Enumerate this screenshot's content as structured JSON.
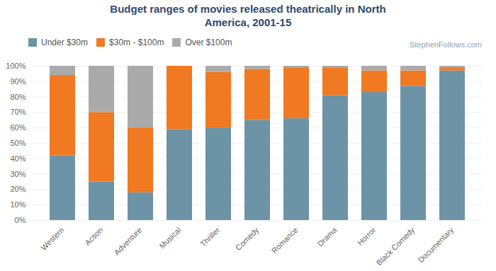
{
  "chart_data": {
    "type": "bar",
    "stacked": true,
    "title": "Budget ranges of movies released theatrically in North\nAmerica, 2001-15",
    "annotations": [
      "StephenFollows.com"
    ],
    "categories": [
      "Western",
      "Action",
      "Adventure",
      "Musical",
      "Thriller",
      "Comedy",
      "Romance",
      "Drama",
      "Horror",
      "Black Comedy",
      "Documentary"
    ],
    "series": [
      {
        "name": "Under $30m",
        "color": "#6d93a6",
        "values": [
          42,
          25,
          18,
          59,
          60,
          65,
          66,
          81,
          83,
          87,
          97
        ]
      },
      {
        "name": "$30m - $100m",
        "color": "#f07922",
        "values": [
          52,
          45,
          42,
          41,
          36,
          33,
          33,
          18,
          14,
          10,
          2
        ]
      },
      {
        "name": "Over $100m",
        "color": "#aaaaaa",
        "values": [
          6,
          30,
          40,
          0,
          4,
          2,
          1,
          1,
          3,
          3,
          1
        ]
      }
    ],
    "ylim": [
      0,
      100
    ],
    "yticks": [
      {
        "value": 0,
        "label": "0%"
      },
      {
        "value": 10,
        "label": "10%"
      },
      {
        "value": 20,
        "label": "20%"
      },
      {
        "value": 30,
        "label": "30%"
      },
      {
        "value": 40,
        "label": "40%"
      },
      {
        "value": 50,
        "label": "50%"
      },
      {
        "value": 60,
        "label": "60%"
      },
      {
        "value": 70,
        "label": "70%"
      },
      {
        "value": 80,
        "label": "80%"
      },
      {
        "value": 90,
        "label": "90%"
      },
      {
        "value": 100,
        "label": "100%"
      }
    ],
    "grid": true,
    "legend": "top"
  }
}
